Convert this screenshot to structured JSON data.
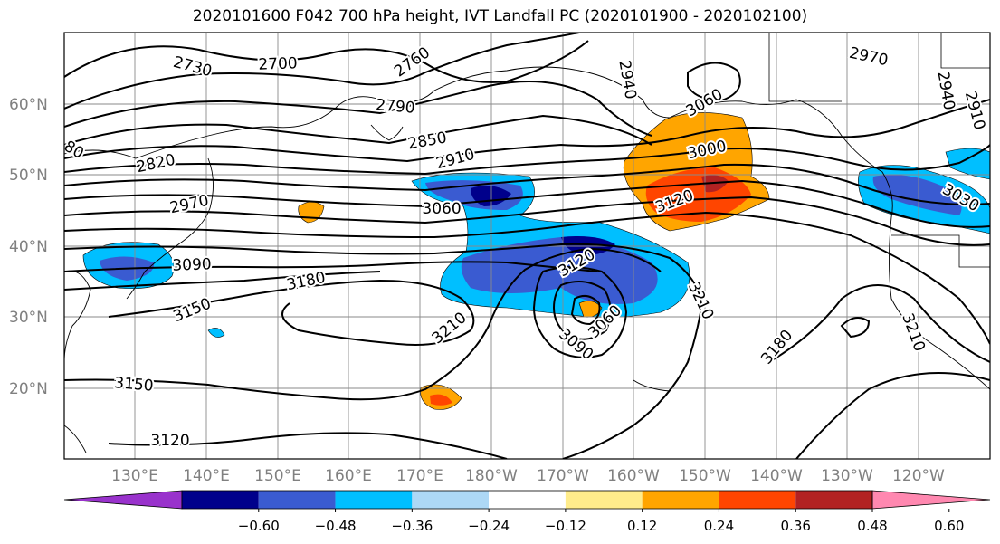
{
  "title": "2020101600 F042 700 hPa height, IVT Landfall PC (2020101900 - 2020102100)",
  "map": {
    "lat_labels": [
      "60°N",
      "50°N",
      "40°N",
      "30°N",
      "20°N"
    ],
    "lon_labels": [
      "130°E",
      "140°E",
      "150°E",
      "160°E",
      "170°E",
      "180°W",
      "170°W",
      "160°W",
      "150°W",
      "140°W",
      "130°W",
      "120°W"
    ],
    "lat_range": [
      10,
      70
    ],
    "lon_range": [
      120,
      250
    ],
    "gridlines": true
  },
  "colorbar": {
    "colors": [
      "#9932CC",
      "#00008B",
      "#3A5BD1",
      "#00BFFF",
      "#ADD8F6",
      "#FFFFFF",
      "#FFEC8B",
      "#FFA500",
      "#FF4500",
      "#B22222",
      "#FF88B0"
    ],
    "tick_labels": [
      "−0.60",
      "−0.48",
      "−0.36",
      "−0.24",
      "−0.12",
      "0.12",
      "0.24",
      "0.36",
      "0.48",
      "0.60"
    ],
    "extend": "both"
  },
  "contour_labels": [
    {
      "text": "2730"
    },
    {
      "text": "2700"
    },
    {
      "text": "2760"
    },
    {
      "text": "2790"
    },
    {
      "text": "2940"
    },
    {
      "text": "2970"
    },
    {
      "text": "2940"
    },
    {
      "text": "2910"
    },
    {
      "text": "2820"
    },
    {
      "text": "2850"
    },
    {
      "text": "2910"
    },
    {
      "text": "3000"
    },
    {
      "text": "3060"
    },
    {
      "text": "2970"
    },
    {
      "text": "3060"
    },
    {
      "text": "3120"
    },
    {
      "text": "3030"
    },
    {
      "text": "3090"
    },
    {
      "text": "3120"
    },
    {
      "text": "3180"
    },
    {
      "text": "3150"
    },
    {
      "text": "3210"
    },
    {
      "text": "3060"
    },
    {
      "text": "3090"
    },
    {
      "text": "3210"
    },
    {
      "text": "3180"
    },
    {
      "text": "3210"
    },
    {
      "text": "3150"
    },
    {
      "text": "3120"
    },
    {
      "text": "80"
    }
  ]
}
